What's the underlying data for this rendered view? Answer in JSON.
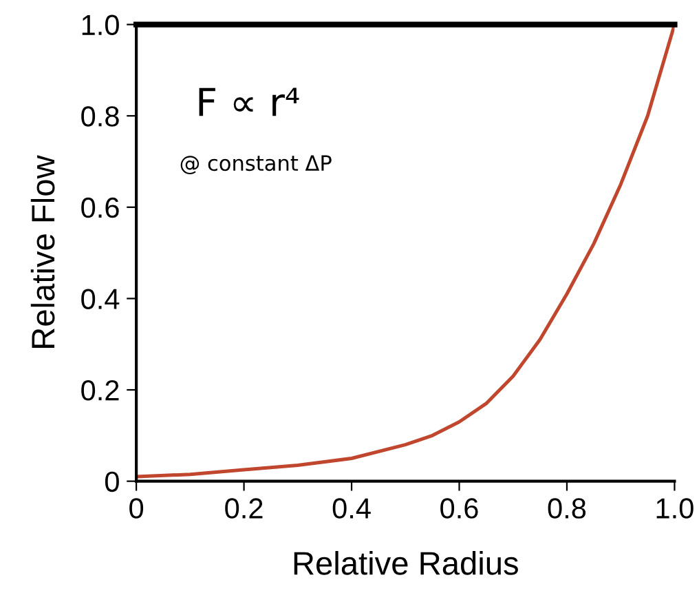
{
  "chart_data": {
    "type": "line",
    "xlabel": "Relative Radius",
    "ylabel": "Relative Flow",
    "x": [
      0,
      0.1,
      0.2,
      0.3,
      0.4,
      0.5,
      0.55,
      0.6,
      0.65,
      0.7,
      0.75,
      0.8,
      0.85,
      0.9,
      0.95,
      1.0
    ],
    "series": [
      {
        "color": "#c0462e",
        "values": [
          0.01,
          0.015,
          0.025,
          0.035,
          0.05,
          0.08,
          0.1,
          0.13,
          0.17,
          0.23,
          0.31,
          0.41,
          0.52,
          0.65,
          0.8,
          1.0
        ]
      }
    ],
    "xlim": [
      0,
      1
    ],
    "ylim": [
      0,
      1
    ],
    "xticks": [
      0,
      0.2,
      0.4,
      0.6,
      0.8,
      {
        "value": 1,
        "label": "1.0"
      }
    ],
    "yticks": [
      0,
      0.2,
      0.4,
      0.6,
      0.8,
      {
        "value": 1,
        "label": "1.0"
      }
    ],
    "annotations": [
      {
        "text": "F ∝ r⁴"
      },
      {
        "text": "@ constant ΔP"
      }
    ],
    "grid": false,
    "marker": "none",
    "line_style": "solid"
  }
}
